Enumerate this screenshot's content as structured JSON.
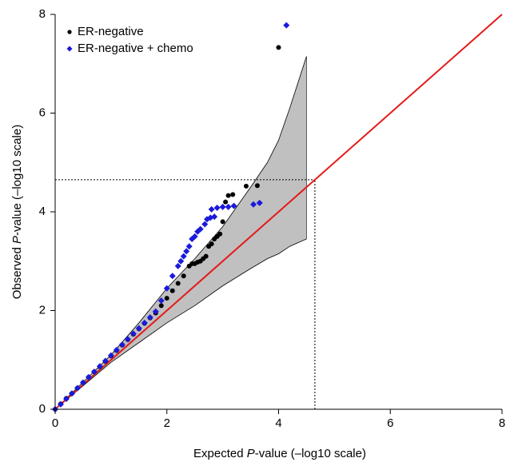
{
  "chart_data": {
    "type": "scatter",
    "xlabel_parts": [
      "Expected ",
      "P",
      "-value (–log10 scale)"
    ],
    "ylabel_parts": [
      "Observed ",
      "P",
      "-value (–log10 scale)"
    ],
    "xlim": [
      0,
      8
    ],
    "ylim": [
      0,
      8
    ],
    "xticks": [
      0,
      2,
      4,
      6,
      8
    ],
    "yticks": [
      0,
      2,
      4,
      6,
      8
    ],
    "legend": "upper-left",
    "series": [
      {
        "name": "ER-negative",
        "color": "#000000",
        "marker": "circle",
        "x": [
          0,
          0.1,
          0.2,
          0.3,
          0.4,
          0.5,
          0.6,
          0.7,
          0.8,
          0.9,
          1.0,
          1.1,
          1.2,
          1.3,
          1.4,
          1.5,
          1.6,
          1.7,
          1.8,
          1.9,
          2.0,
          2.1,
          2.2,
          2.3,
          2.4,
          2.45,
          2.5,
          2.55,
          2.6,
          2.65,
          2.7,
          2.75,
          2.8,
          2.85,
          2.9,
          2.95,
          3.0,
          3.05,
          3.1,
          3.18,
          3.42,
          3.62,
          4.0
        ],
        "values": [
          0,
          0.11,
          0.22,
          0.32,
          0.43,
          0.54,
          0.65,
          0.76,
          0.86,
          0.97,
          1.08,
          1.19,
          1.3,
          1.41,
          1.52,
          1.63,
          1.74,
          1.85,
          1.95,
          2.1,
          2.25,
          2.4,
          2.55,
          2.7,
          2.9,
          2.95,
          2.95,
          2.98,
          3.0,
          3.05,
          3.1,
          3.3,
          3.35,
          3.45,
          3.5,
          3.55,
          3.8,
          4.2,
          4.33,
          4.35,
          4.52,
          4.53,
          7.33
        ]
      },
      {
        "name": "ER-negative + chemo",
        "color": "#1a1adb",
        "marker": "diamond",
        "x": [
          0,
          0.1,
          0.2,
          0.3,
          0.4,
          0.5,
          0.6,
          0.7,
          0.8,
          0.9,
          1.0,
          1.1,
          1.2,
          1.3,
          1.4,
          1.5,
          1.6,
          1.7,
          1.8,
          1.9,
          2.0,
          2.1,
          2.2,
          2.25,
          2.3,
          2.35,
          2.4,
          2.45,
          2.5,
          2.55,
          2.6,
          2.68,
          2.72,
          2.78,
          2.85,
          2.8,
          2.9,
          3.0,
          3.1,
          3.2,
          3.55,
          3.66,
          4.14
        ],
        "values": [
          0,
          0.1,
          0.21,
          0.32,
          0.43,
          0.54,
          0.65,
          0.76,
          0.87,
          0.98,
          1.09,
          1.2,
          1.31,
          1.42,
          1.53,
          1.64,
          1.75,
          1.86,
          1.98,
          2.2,
          2.45,
          2.7,
          2.9,
          3.0,
          3.1,
          3.2,
          3.3,
          3.45,
          3.5,
          3.6,
          3.65,
          3.75,
          3.85,
          3.88,
          3.9,
          4.05,
          4.08,
          4.1,
          4.1,
          4.12,
          4.15,
          4.18,
          7.78
        ]
      }
    ],
    "confidence_band": {
      "color": "#c0c0c0",
      "x": [
        0,
        1,
        1.5,
        2,
        2.5,
        3,
        3.5,
        3.8,
        4,
        4.2,
        4.5
      ],
      "upper": [
        0,
        1.1,
        1.75,
        2.45,
        3.05,
        3.7,
        4.5,
        5.0,
        5.45,
        6.1,
        7.15
      ],
      "lower": [
        0,
        0.95,
        1.35,
        1.75,
        2.1,
        2.5,
        2.85,
        3.05,
        3.15,
        3.3,
        3.45
      ]
    },
    "reference_line": {
      "color": "#e41a1a",
      "x": [
        0,
        8
      ],
      "y": [
        0,
        8
      ]
    },
    "threshold": 4.65
  }
}
